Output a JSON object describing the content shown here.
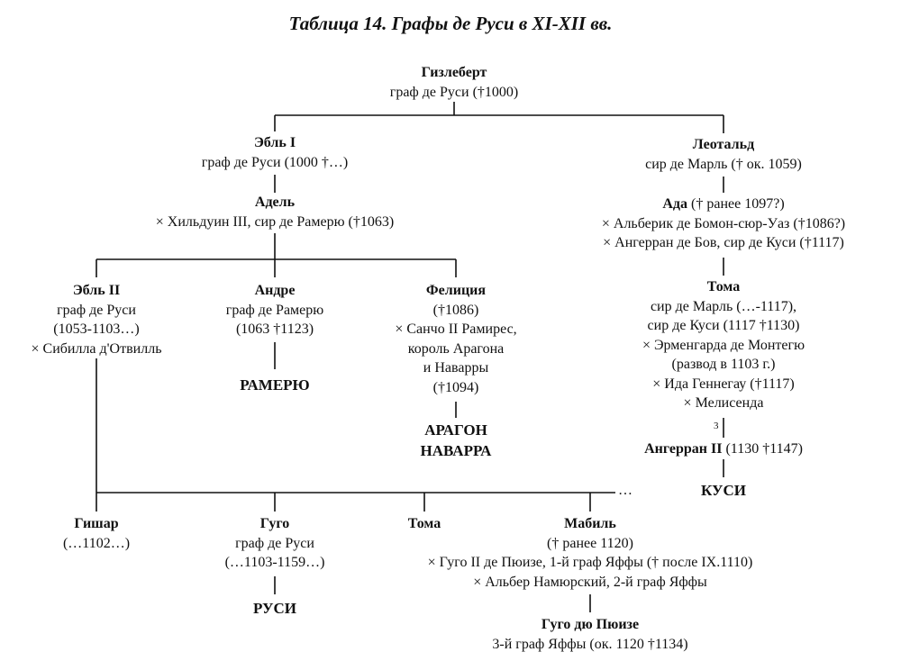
{
  "title": "Таблица 14. Графы де Руси в XI-XII вв.",
  "nodes": {
    "gizlebert": {
      "name": "Гизлеберт",
      "lines": [
        "граф де Руси (†1000)"
      ]
    },
    "ebl1": {
      "name": "Эбль I",
      "lines": [
        "граф де Руси (1000 †…)"
      ]
    },
    "adel": {
      "name": "Адель",
      "lines": [
        "× Хильдуин III, сир де Рамерю (†1063)"
      ]
    },
    "leotald": {
      "name": "Леотальд",
      "lines": [
        "сир де Марль († ок. 1059)"
      ]
    },
    "ada": {
      "name": "Ада",
      "name_suffix": " († ранее 1097?)",
      "lines": [
        "× Альберик де Бомон-сюр-Уаз (†1086?)",
        "× Ангерран де Бов, сир де Куси (†1117)"
      ]
    },
    "ebl2": {
      "name": "Эбль II",
      "lines": [
        "граф де Руси",
        "(1053-1103…)",
        "× Сибилла д'Отвилль"
      ]
    },
    "andre": {
      "name": "Андре",
      "lines": [
        "граф де Рамерю",
        "(1063 †1123)"
      ]
    },
    "felicia": {
      "name": "Фелиция",
      "lines": [
        "(†1086)",
        "× Санчо II Рамирес,",
        "король Арагона",
        "и Наварры",
        "(†1094)"
      ]
    },
    "toma1": {
      "name": "Тома",
      "lines": [
        "сир де Марль (…-1117),",
        "сир де Куси (1117 †1130)",
        "× Эрменгарда де Монтегю",
        "(развод в 1103 г.)",
        "× Ида Геннегау (†1117)",
        "× Мелисенда"
      ]
    },
    "angerran": {
      "name": "Ангерран II",
      "name_suffix": " (1130 †1147)",
      "lines": []
    },
    "gishar": {
      "name": "Гишар",
      "lines": [
        "(…1102…)"
      ]
    },
    "gugo": {
      "name": "Гуго",
      "lines": [
        "граф де Руси",
        "(…1103-1159…)"
      ]
    },
    "toma2": {
      "name": "Тома",
      "lines": []
    },
    "mabil": {
      "name": "Мабиль",
      "lines": [
        "(† ранее 1120)",
        "× Гуго II де Пюизе, 1-й граф Яффы († после IX.1110)",
        "× Альбер Намюрский, 2-й граф Яффы"
      ]
    },
    "gugo_puize": {
      "name": "Гуго дю Пюизе",
      "lines": [
        "3-й граф Яффы (ок. 1120 †1134)"
      ]
    }
  },
  "houses": {
    "ramerю": "РАМЕРЮ",
    "aragon": [
      "АРАГОН",
      "НАВАРРА"
    ],
    "kusi": "КУСИ",
    "rusi": "РУСИ"
  },
  "marks": {
    "marriage_three": "3",
    "ellipsis": "…"
  }
}
